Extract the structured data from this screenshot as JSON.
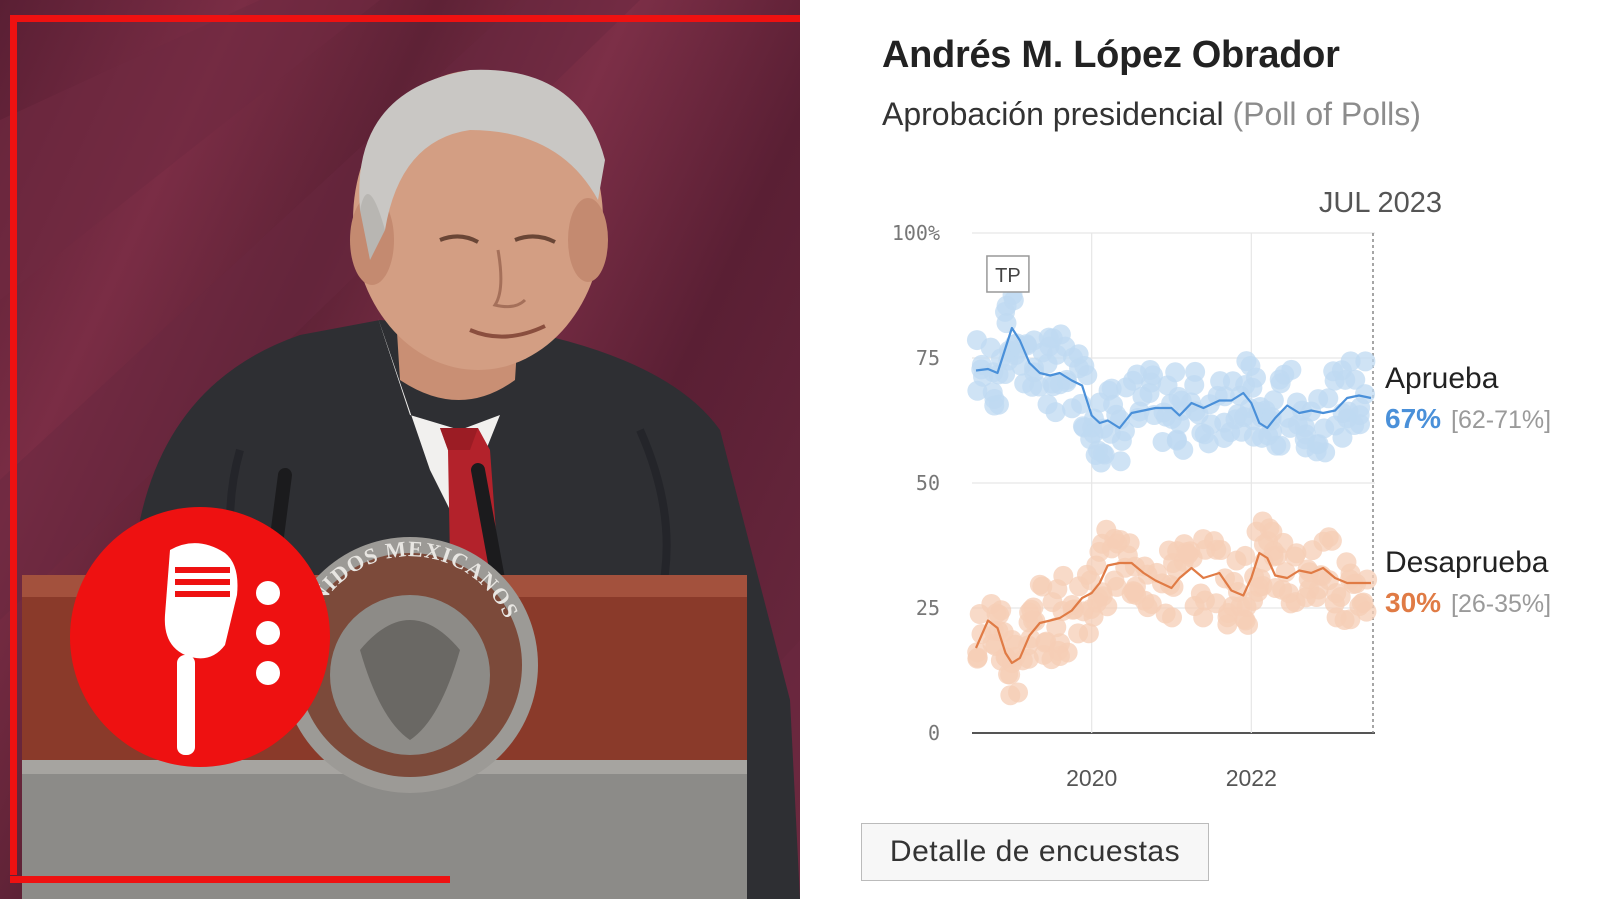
{
  "photo": {
    "description_icon": "person-at-podium-photo",
    "seal_text": "UNIDOS MEXICANOS"
  },
  "podcast_badge": {
    "icon": "microphone-icon",
    "color": "#ee1111"
  },
  "header": {
    "title": "Andrés M. López Obrador",
    "subtitle_main": "Aprobación presidencial",
    "subtitle_muted": "(Poll of Polls)"
  },
  "detail_button": {
    "label": "Detalle de encuestas"
  },
  "chart_data": {
    "type": "line",
    "date_label": "JUL 2023",
    "y_ticks": [
      "100%",
      "75",
      "50",
      "25",
      "0"
    ],
    "x_ticks": [
      "2020",
      "2022"
    ],
    "ylim": [
      0,
      100
    ],
    "xlim": [
      2018.5,
      2023.55
    ],
    "grid": true,
    "annotations": [
      {
        "label": "TP",
        "x": 2018.9
      }
    ],
    "series": [
      {
        "name": "Aprueba",
        "color": "#4a90d9",
        "dot_color": "#bfdaf2",
        "current_value": "67%",
        "range": "[62-71%]",
        "x": [
          2018.55,
          2018.7,
          2018.82,
          2018.92,
          2019.0,
          2019.1,
          2019.22,
          2019.35,
          2019.48,
          2019.6,
          2019.75,
          2019.88,
          2020.0,
          2020.1,
          2020.2,
          2020.35,
          2020.5,
          2020.65,
          2020.8,
          2021.0,
          2021.1,
          2021.25,
          2021.4,
          2021.6,
          2021.75,
          2021.9,
          2022.0,
          2022.1,
          2022.2,
          2022.3,
          2022.45,
          2022.6,
          2022.75,
          2022.9,
          2023.05,
          2023.2,
          2023.35,
          2023.5
        ],
        "values": [
          72.5,
          72.8,
          72.0,
          77.0,
          81.0,
          78.5,
          74.0,
          72.0,
          71.5,
          72.0,
          70.5,
          69.5,
          63.5,
          62.0,
          62.5,
          61.0,
          64.0,
          64.5,
          65.0,
          65.0,
          63.5,
          66.0,
          65.0,
          66.5,
          66.5,
          68.0,
          66.0,
          62.0,
          61.0,
          63.0,
          65.5,
          64.0,
          64.5,
          64.0,
          64.5,
          67.0,
          67.5,
          67.0
        ]
      },
      {
        "name": "Desaprueba",
        "color": "#e07b45",
        "dot_color": "#f6cdb5",
        "current_value": "30%",
        "range": "[26-35%]",
        "x": [
          2018.55,
          2018.7,
          2018.82,
          2018.92,
          2019.0,
          2019.1,
          2019.22,
          2019.35,
          2019.48,
          2019.6,
          2019.75,
          2019.88,
          2020.0,
          2020.1,
          2020.2,
          2020.35,
          2020.5,
          2020.65,
          2020.8,
          2021.0,
          2021.1,
          2021.25,
          2021.4,
          2021.6,
          2021.75,
          2021.9,
          2022.0,
          2022.1,
          2022.2,
          2022.3,
          2022.45,
          2022.6,
          2022.75,
          2022.9,
          2023.05,
          2023.2,
          2023.35,
          2023.5
        ],
        "values": [
          17.0,
          22.5,
          21.0,
          16.0,
          14.0,
          15.0,
          19.5,
          22.0,
          22.5,
          23.0,
          24.5,
          27.0,
          28.0,
          30.0,
          33.5,
          34.0,
          34.0,
          32.0,
          30.5,
          29.0,
          31.0,
          33.0,
          31.0,
          32.0,
          28.5,
          27.5,
          31.0,
          36.0,
          35.0,
          31.5,
          31.0,
          32.5,
          32.0,
          33.0,
          31.0,
          30.0,
          30.0,
          30.0
        ]
      }
    ]
  }
}
